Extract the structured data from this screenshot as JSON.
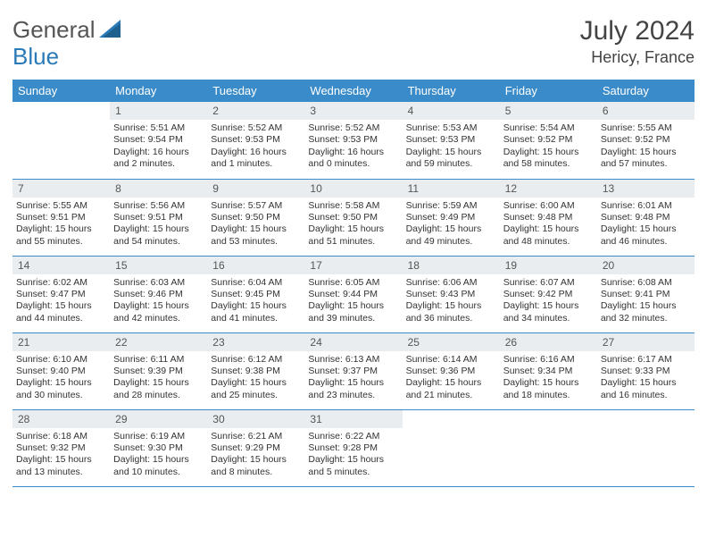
{
  "brand": {
    "part1": "General",
    "part2": "Blue"
  },
  "title": "July 2024",
  "location": "Hericy, France",
  "colors": {
    "header_bg": "#3a8bc9",
    "header_fg": "#ffffff",
    "daynum_bg": "#e9edef",
    "rule": "#3a8bc9",
    "brand_accent": "#2a7ab8"
  },
  "weekdays": [
    "Sunday",
    "Monday",
    "Tuesday",
    "Wednesday",
    "Thursday",
    "Friday",
    "Saturday"
  ],
  "weeks": [
    [
      null,
      {
        "n": "1",
        "sr": "5:51 AM",
        "ss": "9:54 PM",
        "dl": "16 hours and 2 minutes."
      },
      {
        "n": "2",
        "sr": "5:52 AM",
        "ss": "9:53 PM",
        "dl": "16 hours and 1 minutes."
      },
      {
        "n": "3",
        "sr": "5:52 AM",
        "ss": "9:53 PM",
        "dl": "16 hours and 0 minutes."
      },
      {
        "n": "4",
        "sr": "5:53 AM",
        "ss": "9:53 PM",
        "dl": "15 hours and 59 minutes."
      },
      {
        "n": "5",
        "sr": "5:54 AM",
        "ss": "9:52 PM",
        "dl": "15 hours and 58 minutes."
      },
      {
        "n": "6",
        "sr": "5:55 AM",
        "ss": "9:52 PM",
        "dl": "15 hours and 57 minutes."
      }
    ],
    [
      {
        "n": "7",
        "sr": "5:55 AM",
        "ss": "9:51 PM",
        "dl": "15 hours and 55 minutes."
      },
      {
        "n": "8",
        "sr": "5:56 AM",
        "ss": "9:51 PM",
        "dl": "15 hours and 54 minutes."
      },
      {
        "n": "9",
        "sr": "5:57 AM",
        "ss": "9:50 PM",
        "dl": "15 hours and 53 minutes."
      },
      {
        "n": "10",
        "sr": "5:58 AM",
        "ss": "9:50 PM",
        "dl": "15 hours and 51 minutes."
      },
      {
        "n": "11",
        "sr": "5:59 AM",
        "ss": "9:49 PM",
        "dl": "15 hours and 49 minutes."
      },
      {
        "n": "12",
        "sr": "6:00 AM",
        "ss": "9:48 PM",
        "dl": "15 hours and 48 minutes."
      },
      {
        "n": "13",
        "sr": "6:01 AM",
        "ss": "9:48 PM",
        "dl": "15 hours and 46 minutes."
      }
    ],
    [
      {
        "n": "14",
        "sr": "6:02 AM",
        "ss": "9:47 PM",
        "dl": "15 hours and 44 minutes."
      },
      {
        "n": "15",
        "sr": "6:03 AM",
        "ss": "9:46 PM",
        "dl": "15 hours and 42 minutes."
      },
      {
        "n": "16",
        "sr": "6:04 AM",
        "ss": "9:45 PM",
        "dl": "15 hours and 41 minutes."
      },
      {
        "n": "17",
        "sr": "6:05 AM",
        "ss": "9:44 PM",
        "dl": "15 hours and 39 minutes."
      },
      {
        "n": "18",
        "sr": "6:06 AM",
        "ss": "9:43 PM",
        "dl": "15 hours and 36 minutes."
      },
      {
        "n": "19",
        "sr": "6:07 AM",
        "ss": "9:42 PM",
        "dl": "15 hours and 34 minutes."
      },
      {
        "n": "20",
        "sr": "6:08 AM",
        "ss": "9:41 PM",
        "dl": "15 hours and 32 minutes."
      }
    ],
    [
      {
        "n": "21",
        "sr": "6:10 AM",
        "ss": "9:40 PM",
        "dl": "15 hours and 30 minutes."
      },
      {
        "n": "22",
        "sr": "6:11 AM",
        "ss": "9:39 PM",
        "dl": "15 hours and 28 minutes."
      },
      {
        "n": "23",
        "sr": "6:12 AM",
        "ss": "9:38 PM",
        "dl": "15 hours and 25 minutes."
      },
      {
        "n": "24",
        "sr": "6:13 AM",
        "ss": "9:37 PM",
        "dl": "15 hours and 23 minutes."
      },
      {
        "n": "25",
        "sr": "6:14 AM",
        "ss": "9:36 PM",
        "dl": "15 hours and 21 minutes."
      },
      {
        "n": "26",
        "sr": "6:16 AM",
        "ss": "9:34 PM",
        "dl": "15 hours and 18 minutes."
      },
      {
        "n": "27",
        "sr": "6:17 AM",
        "ss": "9:33 PM",
        "dl": "15 hours and 16 minutes."
      }
    ],
    [
      {
        "n": "28",
        "sr": "6:18 AM",
        "ss": "9:32 PM",
        "dl": "15 hours and 13 minutes."
      },
      {
        "n": "29",
        "sr": "6:19 AM",
        "ss": "9:30 PM",
        "dl": "15 hours and 10 minutes."
      },
      {
        "n": "30",
        "sr": "6:21 AM",
        "ss": "9:29 PM",
        "dl": "15 hours and 8 minutes."
      },
      {
        "n": "31",
        "sr": "6:22 AM",
        "ss": "9:28 PM",
        "dl": "15 hours and 5 minutes."
      },
      null,
      null,
      null
    ]
  ],
  "labels": {
    "sunrise": "Sunrise:",
    "sunset": "Sunset:",
    "daylight": "Daylight:"
  }
}
